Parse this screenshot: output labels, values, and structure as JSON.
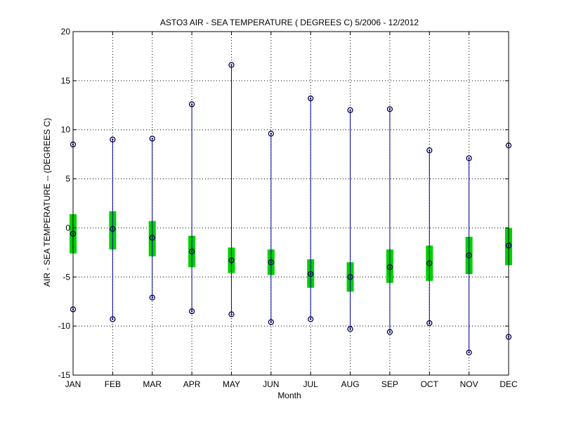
{
  "chart_data": {
    "type": "box",
    "title": "ASTO3  AIR - SEA TEMPERATURE ( DEGREES C) 5/2006 - 12/2012",
    "xlabel": "Month",
    "ylabel": "AIR - SEA TEMPERATURE -- (DEGREES C)",
    "ylim": [
      -15,
      20
    ],
    "yticks": [
      -15,
      -10,
      -5,
      0,
      5,
      10,
      15,
      20
    ],
    "grid": true,
    "categories": [
      "JAN",
      "FEB",
      "MAR",
      "APR",
      "MAY",
      "JUN",
      "JUL",
      "AUG",
      "SEP",
      "OCT",
      "NOV",
      "DEC"
    ],
    "max": [
      8.5,
      9.0,
      9.1,
      12.6,
      16.6,
      9.6,
      13.2,
      12.0,
      12.1,
      7.9,
      7.1,
      8.4
    ],
    "q3": [
      1.4,
      1.7,
      0.7,
      -0.8,
      -2.0,
      -2.2,
      -3.2,
      -3.5,
      -2.2,
      -1.8,
      -0.9,
      0.0
    ],
    "median": [
      -0.6,
      -0.1,
      -1.0,
      -2.4,
      -3.3,
      -3.5,
      -4.7,
      -5.0,
      -4.0,
      -3.6,
      -2.8,
      -1.8
    ],
    "q1": [
      -2.6,
      -2.2,
      -2.9,
      -4.0,
      -4.6,
      -4.8,
      -6.1,
      -6.5,
      -5.6,
      -5.4,
      -4.7,
      -3.8
    ],
    "min": [
      -8.3,
      -9.3,
      -7.1,
      -8.5,
      -8.8,
      -9.6,
      -9.3,
      -10.3,
      -10.6,
      -9.7,
      -12.7,
      -11.1
    ],
    "colors": {
      "whisker": "#0000a0",
      "box": "#00d000",
      "marker": "#000050"
    }
  }
}
